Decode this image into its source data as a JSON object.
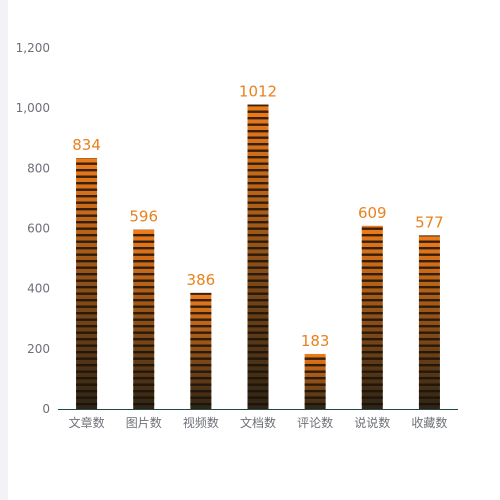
{
  "chart_data": {
    "type": "bar",
    "categories": [
      "文章数",
      "图片数",
      "视频数",
      "文档数",
      "评论数",
      "说说数",
      "收藏数"
    ],
    "values": [
      834,
      596,
      386,
      1012,
      183,
      609,
      577
    ],
    "yticks": [
      "0",
      "200",
      "400",
      "600",
      "800",
      "1,000",
      "1,200"
    ],
    "ylim": [
      0,
      1200
    ],
    "title": "",
    "xlabel": "",
    "ylabel": "",
    "grid": false,
    "colors": {
      "bar_top": "#f07c1a",
      "bar_bottom": "#2e2416",
      "stripe": "#1a1208",
      "data_label": "#e8821e",
      "axis": "#1f4a4a"
    }
  }
}
